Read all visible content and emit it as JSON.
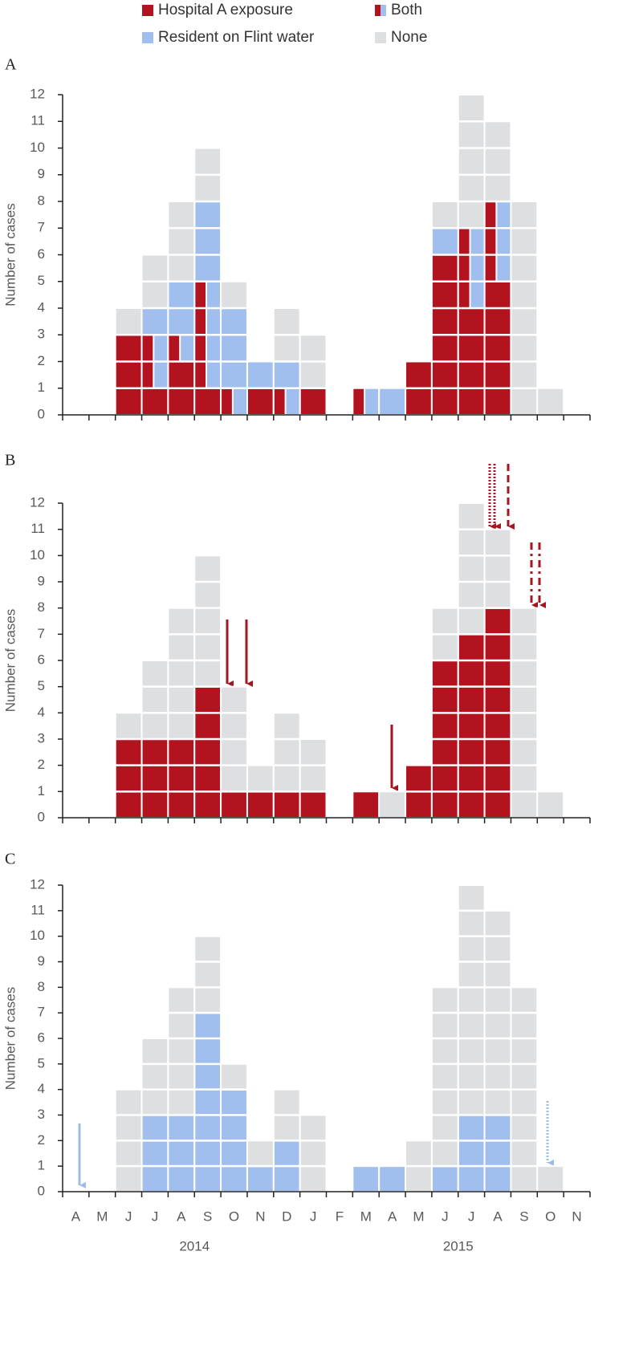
{
  "chart_data": [
    {
      "type": "bar",
      "stacked": true,
      "panel_label": "A",
      "y_label": "Number of cases",
      "ylim": [
        0,
        12
      ],
      "yticks": [
        0,
        1,
        2,
        3,
        4,
        5,
        6,
        7,
        8,
        9,
        10,
        11,
        12
      ],
      "series": [
        {
          "name": "Hospital A exposure",
          "color": "#b3121f",
          "values": [
            0,
            0,
            3,
            1,
            2,
            1,
            0,
            1,
            0,
            1,
            0,
            0,
            0,
            2,
            6,
            4,
            5,
            0,
            0,
            0
          ]
        },
        {
          "name": "Both",
          "colors": [
            "#b3121f",
            "#a0bfee"
          ],
          "values": [
            0,
            0,
            0,
            2,
            1,
            4,
            1,
            0,
            1,
            0,
            0,
            1,
            0,
            0,
            0,
            3,
            3,
            0,
            0,
            0
          ]
        },
        {
          "name": "Resident on Flint water",
          "color": "#a0bfee",
          "values": [
            0,
            0,
            0,
            1,
            2,
            3,
            3,
            1,
            1,
            0,
            0,
            0,
            1,
            0,
            1,
            0,
            0,
            0,
            0,
            0
          ]
        },
        {
          "name": "None",
          "color": "#dddfe0",
          "values": [
            0,
            0,
            1,
            2,
            3,
            2,
            1,
            0,
            2,
            2,
            0,
            0,
            0,
            0,
            1,
            5,
            3,
            8,
            1,
            0
          ]
        }
      ]
    },
    {
      "type": "bar",
      "stacked": true,
      "panel_label": "B",
      "y_label": "Number of cases",
      "ylim": [
        0,
        12
      ],
      "yticks": [
        0,
        1,
        2,
        3,
        4,
        5,
        6,
        7,
        8,
        9,
        10,
        11,
        12
      ],
      "series": [
        {
          "color": "#b3121f",
          "values": [
            0,
            0,
            3,
            3,
            3,
            5,
            1,
            1,
            1,
            1,
            0,
            1,
            0,
            2,
            6,
            7,
            8,
            0,
            0,
            0
          ]
        },
        {
          "color": "#dddfe0",
          "values": [
            0,
            0,
            1,
            3,
            5,
            5,
            4,
            1,
            3,
            2,
            0,
            0,
            1,
            0,
            2,
            5,
            3,
            8,
            1,
            0
          ]
        }
      ]
    },
    {
      "type": "bar",
      "stacked": true,
      "panel_label": "C",
      "y_label": "Number of cases",
      "ylim": [
        0,
        12
      ],
      "yticks": [
        0,
        1,
        2,
        3,
        4,
        5,
        6,
        7,
        8,
        9,
        10,
        11,
        12
      ],
      "categories": [
        "A",
        "M",
        "J",
        "J",
        "A",
        "S",
        "O",
        "N",
        "D",
        "J",
        "F",
        "M",
        "A",
        "M",
        "J",
        "J",
        "A",
        "S",
        "O",
        "N"
      ],
      "year_labels": [
        "2014",
        "2015"
      ],
      "series": [
        {
          "color": "#a0bfee",
          "values": [
            0,
            0,
            0,
            3,
            3,
            7,
            4,
            1,
            2,
            0,
            0,
            1,
            1,
            0,
            1,
            3,
            3,
            0,
            0,
            0
          ]
        },
        {
          "color": "#dddfe0",
          "values": [
            0,
            0,
            4,
            3,
            5,
            3,
            1,
            1,
            2,
            3,
            0,
            0,
            0,
            2,
            7,
            9,
            8,
            8,
            1,
            0
          ]
        }
      ]
    }
  ]
}
